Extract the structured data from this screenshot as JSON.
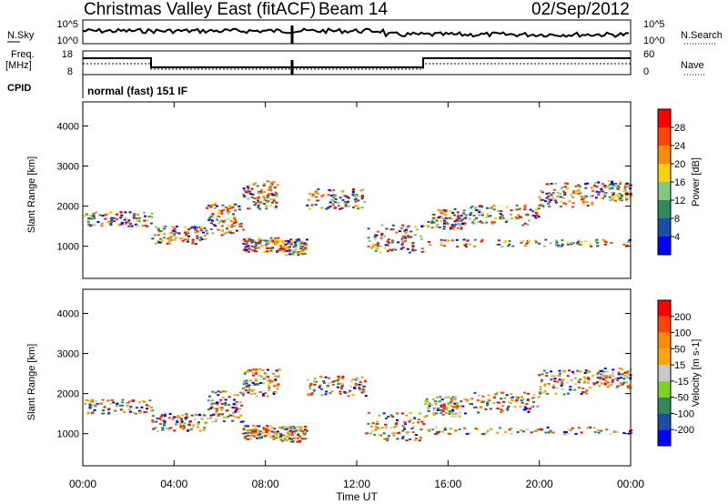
{
  "header": {
    "title": "Christmas Valley East (fitACF)",
    "beam": "Beam 14",
    "date": "02/Sep/2012"
  },
  "top_panels": {
    "nsky_label": "N.Sky",
    "nsky_ticks": [
      "10^5",
      "10^0"
    ],
    "nsearch_label": "N.Search",
    "nsearch_ticks": [
      "10^5",
      "10^0"
    ],
    "freq_label_1": "Freq.",
    "freq_label_2": "[MHz]",
    "freq_ticks": [
      "18",
      "8"
    ],
    "nave_label": "Nave",
    "nave_ticks": [
      "60",
      "0"
    ],
    "cpid_label": "CPID",
    "cpid_value": "normal (fast) 151 IF"
  },
  "chart_data": [
    {
      "type": "heatmap",
      "name": "power",
      "ylabel": "Slant Range [km]",
      "yticks": [
        "1000",
        "2000",
        "3000",
        "4000"
      ],
      "ylim": [
        200,
        4600
      ],
      "colorbar_label": "Power [dB]",
      "colorbar_ticks": [
        "4",
        "8",
        "12",
        "16",
        "20",
        "24",
        "28"
      ],
      "colors": [
        "#0000ff",
        "#1a4fa8",
        "#2e8b57",
        "#7fc97f",
        "#ffd000",
        "#ff8c00",
        "#ff4500",
        "#ff0000"
      ]
    },
    {
      "type": "heatmap",
      "name": "velocity",
      "ylabel": "Slant Range [km]",
      "yticks": [
        "1000",
        "2000",
        "3000",
        "4000"
      ],
      "ylim": [
        200,
        4600
      ],
      "colorbar_label": "Velocity [m s-1]",
      "colorbar_ticks": [
        "200",
        "100",
        "50",
        "15",
        "-15",
        "-50",
        "-100",
        "-200"
      ],
      "colors": [
        "#0000ff",
        "#1a4fa8",
        "#2e8b57",
        "#7ed321",
        "#c8c8c8",
        "#ffa500",
        "#ff8c00",
        "#ff4500",
        "#ff0000"
      ]
    }
  ],
  "xaxis": {
    "ticks": [
      "00:00",
      "04:00",
      "08:00",
      "12:00",
      "16:00",
      "20:00",
      "00:00"
    ],
    "label": "Time UT"
  }
}
